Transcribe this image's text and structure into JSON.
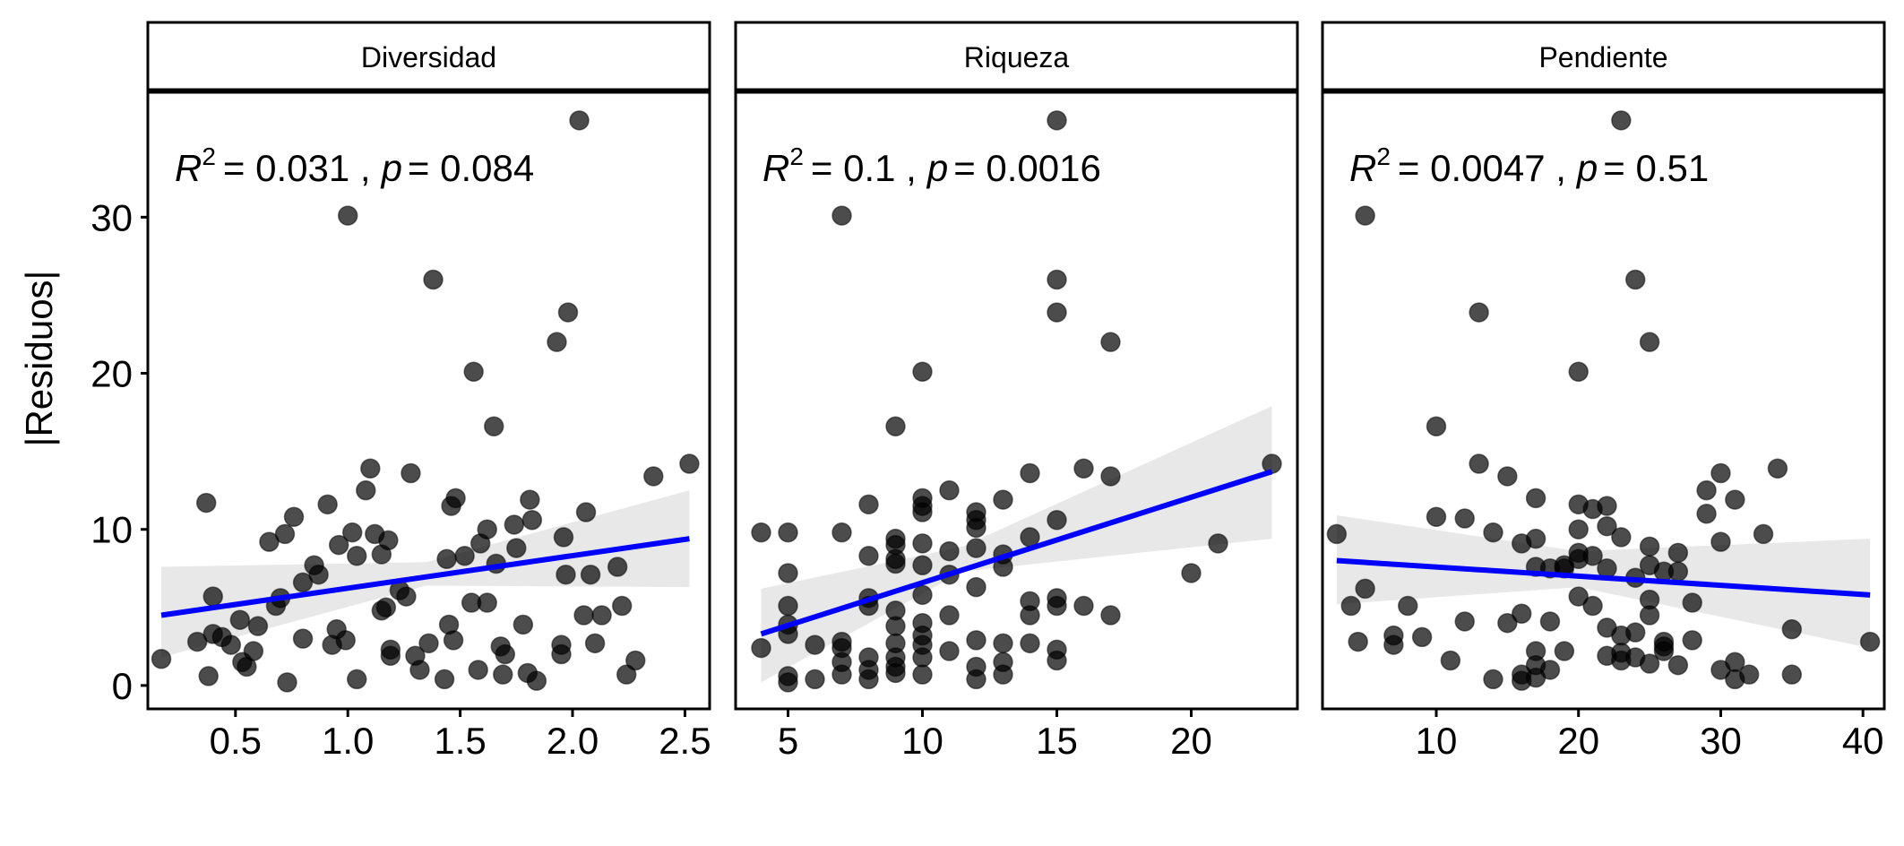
{
  "chart_data": {
    "type": "scatter",
    "ylabel": "|Residuos|",
    "xlabel": "",
    "ylim": [
      -1.5,
      38
    ],
    "y_ticks": [
      0,
      10,
      20,
      30
    ],
    "grid": false,
    "point_color": "#000000",
    "point_opacity": 0.7,
    "fit_line_color": "#0000ff",
    "ci_band_color": "#d9d9d9",
    "panels": [
      {
        "strip": "Diversidad",
        "annotation": {
          "r2_label": "R",
          "r2_sup": "2",
          "r2_value": "= 0.031 ,",
          "p_label": "p",
          "p_value": "= 0.084"
        },
        "xlim": [
          0.11,
          2.61
        ],
        "x_ticks": [
          "0.5",
          "1.0",
          "1.5",
          "2.0",
          "2.5"
        ],
        "fit": {
          "x": [
            0.17,
            2.52
          ],
          "y": [
            4.5,
            9.4
          ]
        },
        "ci_lower": [
          [
            0.17,
            1.8
          ],
          [
            1.35,
            6.4
          ],
          [
            2.52,
            6.3
          ]
        ],
        "ci_upper": [
          [
            0.17,
            7.6
          ],
          [
            1.35,
            7.9
          ],
          [
            2.52,
            12.5
          ]
        ],
        "points": [
          [
            0.17,
            1.7
          ],
          [
            0.33,
            2.8
          ],
          [
            0.37,
            11.7
          ],
          [
            0.38,
            0.6
          ],
          [
            0.4,
            5.7
          ],
          [
            0.4,
            3.3
          ],
          [
            0.44,
            3.1
          ],
          [
            0.48,
            2.6
          ],
          [
            0.52,
            4.2
          ],
          [
            0.53,
            1.5
          ],
          [
            0.55,
            1.2
          ],
          [
            0.58,
            2.2
          ],
          [
            0.6,
            3.8
          ],
          [
            0.65,
            9.2
          ],
          [
            0.68,
            5.1
          ],
          [
            0.7,
            5.6
          ],
          [
            0.72,
            9.7
          ],
          [
            0.73,
            0.2
          ],
          [
            0.76,
            10.8
          ],
          [
            0.8,
            3.0
          ],
          [
            0.8,
            6.6
          ],
          [
            0.85,
            7.7
          ],
          [
            0.87,
            7.1
          ],
          [
            0.91,
            11.6
          ],
          [
            0.93,
            2.6
          ],
          [
            0.95,
            3.6
          ],
          [
            0.96,
            9.0
          ],
          [
            0.99,
            2.9
          ],
          [
            1.0,
            30.1
          ],
          [
            1.02,
            9.8
          ],
          [
            1.04,
            8.3
          ],
          [
            1.04,
            0.4
          ],
          [
            1.08,
            12.5
          ],
          [
            1.1,
            13.9
          ],
          [
            1.12,
            9.7
          ],
          [
            1.15,
            8.4
          ],
          [
            1.15,
            4.8
          ],
          [
            1.17,
            5.0
          ],
          [
            1.18,
            9.3
          ],
          [
            1.19,
            2.3
          ],
          [
            1.19,
            1.9
          ],
          [
            1.23,
            6.1
          ],
          [
            1.26,
            5.7
          ],
          [
            1.28,
            13.6
          ],
          [
            1.3,
            1.9
          ],
          [
            1.32,
            1.0
          ],
          [
            1.36,
            2.7
          ],
          [
            1.38,
            26.0
          ],
          [
            1.43,
            0.4
          ],
          [
            1.44,
            8.1
          ],
          [
            1.45,
            3.9
          ],
          [
            1.46,
            11.5
          ],
          [
            1.47,
            2.9
          ],
          [
            1.48,
            12.0
          ],
          [
            1.52,
            8.3
          ],
          [
            1.55,
            5.3
          ],
          [
            1.56,
            20.1
          ],
          [
            1.58,
            1.0
          ],
          [
            1.59,
            9.1
          ],
          [
            1.62,
            10.0
          ],
          [
            1.62,
            5.3
          ],
          [
            1.65,
            16.6
          ],
          [
            1.66,
            7.8
          ],
          [
            1.68,
            2.5
          ],
          [
            1.69,
            0.7
          ],
          [
            1.7,
            2.0
          ],
          [
            1.74,
            10.3
          ],
          [
            1.75,
            8.8
          ],
          [
            1.78,
            3.9
          ],
          [
            1.8,
            0.8
          ],
          [
            1.81,
            11.9
          ],
          [
            1.82,
            10.6
          ],
          [
            1.84,
            0.3
          ],
          [
            1.93,
            22.0
          ],
          [
            1.95,
            2.6
          ],
          [
            1.95,
            2.0
          ],
          [
            1.96,
            9.5
          ],
          [
            1.97,
            7.1
          ],
          [
            1.98,
            23.9
          ],
          [
            2.03,
            36.2
          ],
          [
            2.05,
            4.5
          ],
          [
            2.06,
            11.1
          ],
          [
            2.08,
            7.1
          ],
          [
            2.1,
            2.7
          ],
          [
            2.13,
            4.5
          ],
          [
            2.2,
            7.6
          ],
          [
            2.22,
            5.1
          ],
          [
            2.24,
            0.7
          ],
          [
            2.28,
            1.6
          ],
          [
            2.36,
            13.4
          ],
          [
            2.52,
            14.2
          ]
        ]
      },
      {
        "strip": "Riqueza",
        "annotation": {
          "r2_label": "R",
          "r2_sup": "2",
          "r2_value": "= 0.1 ,",
          "p_label": "p",
          "p_value": "= 0.0016"
        },
        "xlim": [
          3.05,
          23.95
        ],
        "x_ticks": [
          "5",
          "10",
          "15",
          "20"
        ],
        "fit": {
          "x": [
            4,
            23
          ],
          "y": [
            3.3,
            13.7
          ]
        },
        "ci_lower": [
          [
            4,
            0.2
          ],
          [
            11.5,
            7.3
          ],
          [
            23,
            9.4
          ]
        ],
        "ci_upper": [
          [
            4,
            6.2
          ],
          [
            11.5,
            8.9
          ],
          [
            23,
            17.9
          ]
        ],
        "points": [
          [
            4,
            9.8
          ],
          [
            4,
            2.4
          ],
          [
            5,
            9.8
          ],
          [
            5,
            7.2
          ],
          [
            5,
            5.1
          ],
          [
            5,
            3.9
          ],
          [
            5,
            3.3
          ],
          [
            5,
            0.6
          ],
          [
            5,
            0.2
          ],
          [
            6,
            2.6
          ],
          [
            6,
            0.4
          ],
          [
            7,
            30.1
          ],
          [
            7,
            9.8
          ],
          [
            7,
            2.8
          ],
          [
            7,
            2.4
          ],
          [
            7,
            1.5
          ],
          [
            7,
            0.7
          ],
          [
            8,
            11.6
          ],
          [
            8,
            8.3
          ],
          [
            8,
            5.6
          ],
          [
            8,
            5.1
          ],
          [
            8,
            1.8
          ],
          [
            8,
            1.0
          ],
          [
            8,
            0.4
          ],
          [
            9,
            16.6
          ],
          [
            9,
            9.4
          ],
          [
            9,
            9.0
          ],
          [
            9,
            8.1
          ],
          [
            9,
            7.8
          ],
          [
            9,
            4.8
          ],
          [
            9,
            3.8
          ],
          [
            9,
            2.7
          ],
          [
            9,
            1.8
          ],
          [
            9,
            1.2
          ],
          [
            9,
            0.8
          ],
          [
            10,
            20.1
          ],
          [
            10,
            12.0
          ],
          [
            10,
            11.5
          ],
          [
            10,
            11.1
          ],
          [
            10,
            9.1
          ],
          [
            10,
            7.7
          ],
          [
            10,
            5.8
          ],
          [
            10,
            4.0
          ],
          [
            10,
            3.2
          ],
          [
            10,
            2.6
          ],
          [
            10,
            1.8
          ],
          [
            10,
            0.7
          ],
          [
            11,
            12.5
          ],
          [
            11,
            8.6
          ],
          [
            11,
            7.1
          ],
          [
            11,
            4.5
          ],
          [
            11,
            2.2
          ],
          [
            12,
            11.1
          ],
          [
            12,
            10.6
          ],
          [
            12,
            10.1
          ],
          [
            12,
            8.8
          ],
          [
            12,
            6.3
          ],
          [
            12,
            2.9
          ],
          [
            12,
            1.2
          ],
          [
            12,
            0.4
          ],
          [
            13,
            11.9
          ],
          [
            13,
            8.4
          ],
          [
            13,
            7.6
          ],
          [
            13,
            2.7
          ],
          [
            13,
            1.5
          ],
          [
            13,
            0.7
          ],
          [
            14,
            13.6
          ],
          [
            14,
            9.5
          ],
          [
            14,
            5.4
          ],
          [
            14,
            4.5
          ],
          [
            14,
            2.7
          ],
          [
            15,
            36.2
          ],
          [
            15,
            26.0
          ],
          [
            15,
            23.9
          ],
          [
            15,
            10.6
          ],
          [
            15,
            5.6
          ],
          [
            15,
            5.1
          ],
          [
            15,
            2.3
          ],
          [
            15,
            1.6
          ],
          [
            16,
            13.9
          ],
          [
            16,
            5.1
          ],
          [
            17,
            22.0
          ],
          [
            17,
            13.4
          ],
          [
            17,
            4.5
          ],
          [
            20,
            7.2
          ],
          [
            21,
            9.1
          ],
          [
            23,
            14.2
          ]
        ]
      },
      {
        "strip": "Pendiente",
        "annotation": {
          "r2_label": "R",
          "r2_sup": "2",
          "r2_value": "= 0.0047 ,",
          "p_label": "p",
          "p_value": "= 0.51"
        },
        "xlim": [
          2.0,
          41.5
        ],
        "x_ticks": [
          "10",
          "20",
          "30",
          "40"
        ],
        "fit": {
          "x": [
            3,
            40.5
          ],
          "y": [
            8.0,
            5.8
          ]
        },
        "ci_lower": [
          [
            3,
            5.2
          ],
          [
            20,
            6.3
          ],
          [
            40.5,
            2.4
          ]
        ],
        "ci_upper": [
          [
            3,
            10.9
          ],
          [
            20,
            8.6
          ],
          [
            40.5,
            9.4
          ]
        ],
        "points": [
          [
            3,
            9.7
          ],
          [
            4,
            5.1
          ],
          [
            4.5,
            2.8
          ],
          [
            5,
            6.2
          ],
          [
            5,
            30.1
          ],
          [
            7,
            2.6
          ],
          [
            7,
            3.2
          ],
          [
            8,
            5.1
          ],
          [
            9,
            3.1
          ],
          [
            10,
            16.6
          ],
          [
            10,
            10.8
          ],
          [
            11,
            1.6
          ],
          [
            12,
            10.7
          ],
          [
            12,
            4.1
          ],
          [
            13,
            14.2
          ],
          [
            13,
            23.9
          ],
          [
            14,
            9.8
          ],
          [
            14,
            0.4
          ],
          [
            15,
            13.4
          ],
          [
            15,
            4.0
          ],
          [
            16,
            9.1
          ],
          [
            16,
            0.3
          ],
          [
            16,
            0.7
          ],
          [
            16,
            4.6
          ],
          [
            17,
            12.0
          ],
          [
            17,
            9.4
          ],
          [
            17,
            7.6
          ],
          [
            17,
            2.2
          ],
          [
            17,
            1.3
          ],
          [
            17,
            0.5
          ],
          [
            18,
            7.5
          ],
          [
            18,
            4.1
          ],
          [
            18,
            1.0
          ],
          [
            19,
            7.7
          ],
          [
            19,
            2.2
          ],
          [
            19,
            7.5
          ],
          [
            20,
            20.1
          ],
          [
            20,
            11.6
          ],
          [
            20,
            10.0
          ],
          [
            20,
            5.7
          ],
          [
            20,
            8.5
          ],
          [
            20,
            8.1
          ],
          [
            21,
            11.3
          ],
          [
            21,
            5.1
          ],
          [
            21,
            8.3
          ],
          [
            22,
            11.5
          ],
          [
            22,
            10.2
          ],
          [
            22,
            7.5
          ],
          [
            22,
            3.7
          ],
          [
            22,
            1.9
          ],
          [
            23,
            36.2
          ],
          [
            23,
            9.5
          ],
          [
            23,
            3.2
          ],
          [
            23,
            2.1
          ],
          [
            23,
            1.6
          ],
          [
            24,
            26.0
          ],
          [
            24,
            6.9
          ],
          [
            24,
            3.4
          ],
          [
            24,
            1.8
          ],
          [
            25,
            5.5
          ],
          [
            25,
            4.5
          ],
          [
            25,
            1.4
          ],
          [
            25,
            22.0
          ],
          [
            25,
            8.9
          ],
          [
            25,
            7.7
          ],
          [
            26,
            7.3
          ],
          [
            26,
            2.2
          ],
          [
            26,
            2.8
          ],
          [
            26,
            2.5
          ],
          [
            27,
            7.3
          ],
          [
            27,
            1.3
          ],
          [
            27,
            8.5
          ],
          [
            28,
            2.9
          ],
          [
            28,
            5.3
          ],
          [
            29,
            12.5
          ],
          [
            29,
            11.0
          ],
          [
            30,
            13.6
          ],
          [
            30,
            1.0
          ],
          [
            30,
            9.2
          ],
          [
            31,
            11.9
          ],
          [
            31,
            1.5
          ],
          [
            31,
            0.4
          ],
          [
            32,
            0.7
          ],
          [
            33,
            9.7
          ],
          [
            34,
            13.9
          ],
          [
            35,
            3.6
          ],
          [
            35,
            0.7
          ],
          [
            40.5,
            2.8
          ]
        ]
      }
    ]
  }
}
